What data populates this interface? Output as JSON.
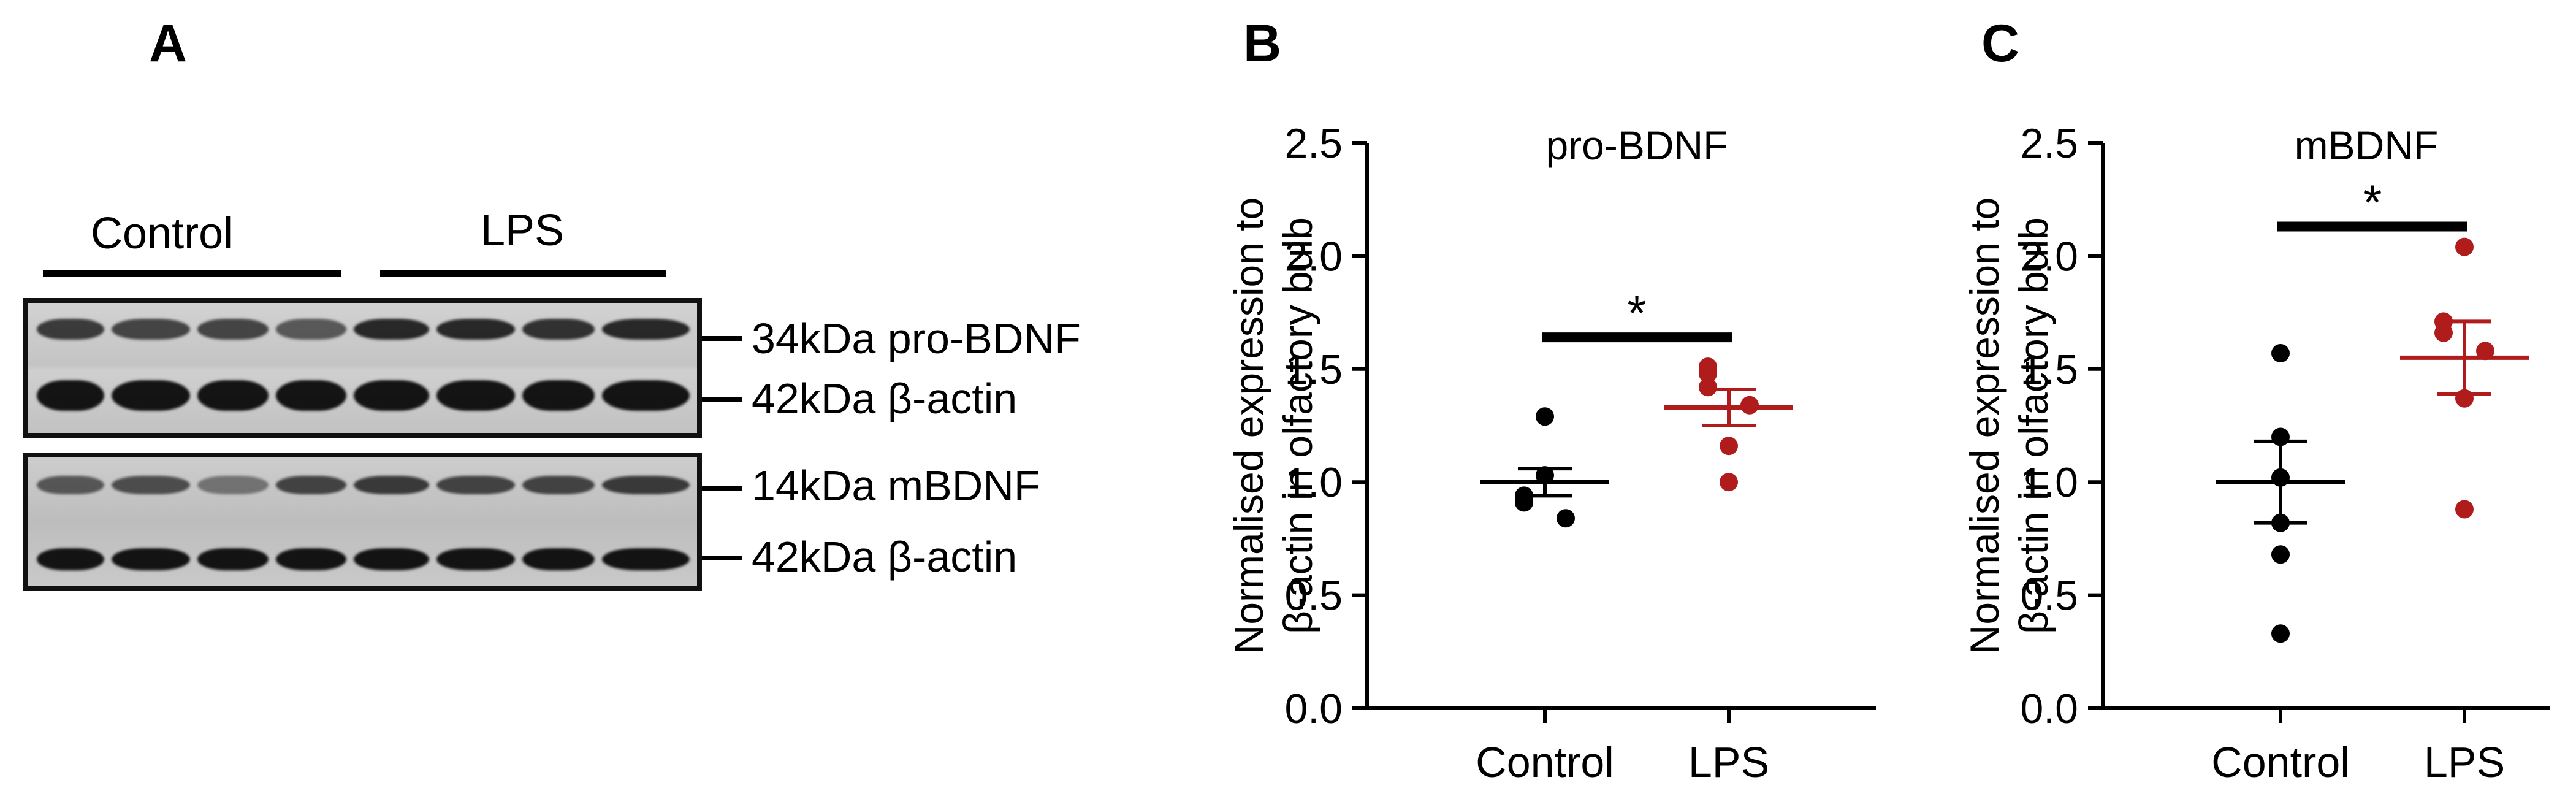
{
  "panels": {
    "a": {
      "letter": "A"
    },
    "b": {
      "letter": "B"
    },
    "c": {
      "letter": "C"
    }
  },
  "blot": {
    "groups": [
      "Control",
      "LPS"
    ],
    "band_labels": [
      "34kDa pro-BDNF",
      "42kDa β-actin",
      "14kDa mBDNF",
      "42kDa β-actin"
    ]
  },
  "colors": {
    "control": "#000000",
    "lps": "#b01c1c"
  },
  "chart_data": [
    {
      "type": "scatter",
      "title": "pro-BDNF",
      "xlabel": "",
      "ylabel_lines": [
        "Normalised expression to",
        "β-actin in olfactory bulb"
      ],
      "categories": [
        "Control",
        "LPS"
      ],
      "ylim": [
        0,
        2.5
      ],
      "yticks": [
        "0.0",
        "0.5",
        "1.0",
        "1.5",
        "2.0",
        "2.5"
      ],
      "series": [
        {
          "name": "Control",
          "values": [
            1.29,
            1.03,
            0.94,
            0.92,
            0.91,
            0.84
          ],
          "mean": 1.0,
          "sem": 0.06
        },
        {
          "name": "LPS",
          "values": [
            1.51,
            1.48,
            1.42,
            1.34,
            1.16,
            1.0
          ],
          "mean": 1.33,
          "sem": 0.08
        }
      ],
      "significance": {
        "label": "*",
        "y": 1.64
      }
    },
    {
      "type": "scatter",
      "title": "mBDNF",
      "xlabel": "",
      "ylabel_lines": [
        "Normalised expression to",
        "β-actin in olfactory bulb"
      ],
      "categories": [
        "Control",
        "LPS"
      ],
      "ylim": [
        0,
        2.5
      ],
      "yticks": [
        "0.0",
        "0.5",
        "1.0",
        "1.5",
        "2.0",
        "2.5"
      ],
      "series": [
        {
          "name": "Control",
          "values": [
            1.57,
            1.2,
            1.02,
            0.82,
            0.68,
            0.33
          ],
          "mean": 1.0,
          "sem": 0.18
        },
        {
          "name": "LPS",
          "values": [
            2.04,
            1.71,
            1.66,
            1.58,
            1.37,
            0.88
          ],
          "mean": 1.55,
          "sem": 0.16
        }
      ],
      "significance": {
        "label": "*",
        "y": 2.13
      }
    }
  ]
}
